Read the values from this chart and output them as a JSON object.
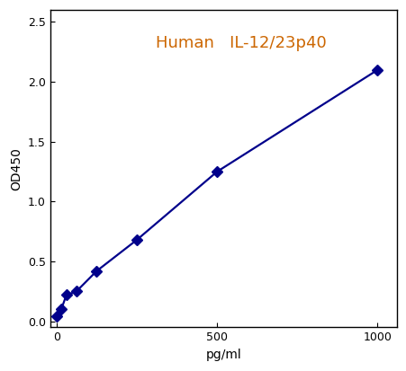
{
  "x": [
    0,
    15,
    31,
    62,
    125,
    250,
    500,
    1000
  ],
  "y": [
    0.04,
    0.1,
    0.22,
    0.25,
    0.42,
    0.68,
    1.25,
    2.1
  ],
  "title": "Human   IL-12/23p40",
  "title_color": "#cc6600",
  "xlabel": "pg/ml",
  "ylabel": "OD450",
  "line_color": "#00008B",
  "marker_color": "#00008B",
  "xlim": [
    -20,
    1060
  ],
  "ylim": [
    -0.05,
    2.6
  ],
  "xticks": [
    0,
    500,
    1000
  ],
  "yticks": [
    0,
    0.5,
    1.0,
    1.5,
    2.0,
    2.5
  ],
  "title_fontsize": 13,
  "label_fontsize": 10,
  "tick_fontsize": 9,
  "linewidth": 1.6,
  "markersize": 6
}
